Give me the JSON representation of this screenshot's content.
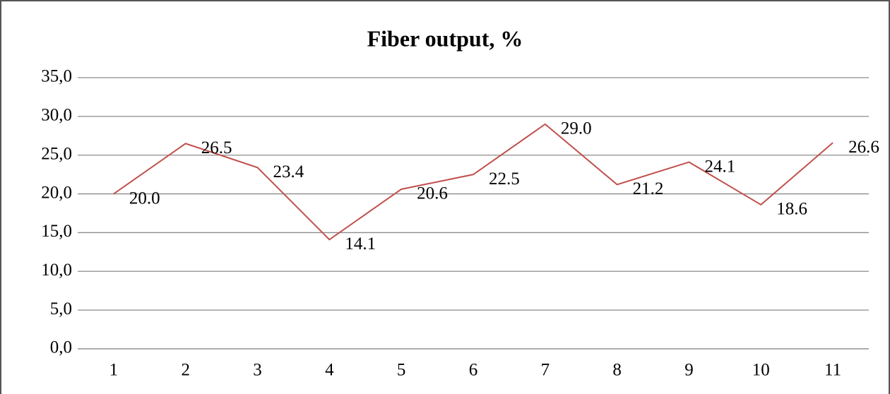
{
  "chart_data": {
    "type": "line",
    "title": "Fiber output, %",
    "categories": [
      "1",
      "2",
      "3",
      "4",
      "5",
      "6",
      "7",
      "8",
      "9",
      "10",
      "11"
    ],
    "series": [
      {
        "name": "Fiber output",
        "color": "#c0504d",
        "values": [
          20.0,
          26.5,
          23.4,
          14.1,
          20.6,
          22.5,
          29.0,
          21.2,
          24.1,
          18.6,
          26.6
        ],
        "value_labels": [
          "20.0",
          "26.5",
          "23.4",
          "14.1",
          "20.6",
          "22.5",
          "29.0",
          "21.2",
          "24.1",
          "18.6",
          "26.6"
        ]
      }
    ],
    "ylim": [
      0,
      35
    ],
    "yticks": [
      {
        "value": 0,
        "label": "0,0"
      },
      {
        "value": 5,
        "label": "5,0"
      },
      {
        "value": 10,
        "label": "10,0"
      },
      {
        "value": 15,
        "label": "15,0"
      },
      {
        "value": 20,
        "label": "20,0"
      },
      {
        "value": 25,
        "label": "25,0"
      },
      {
        "value": 30,
        "label": "30,0"
      },
      {
        "value": 35,
        "label": "35,0"
      }
    ],
    "grid": true
  }
}
